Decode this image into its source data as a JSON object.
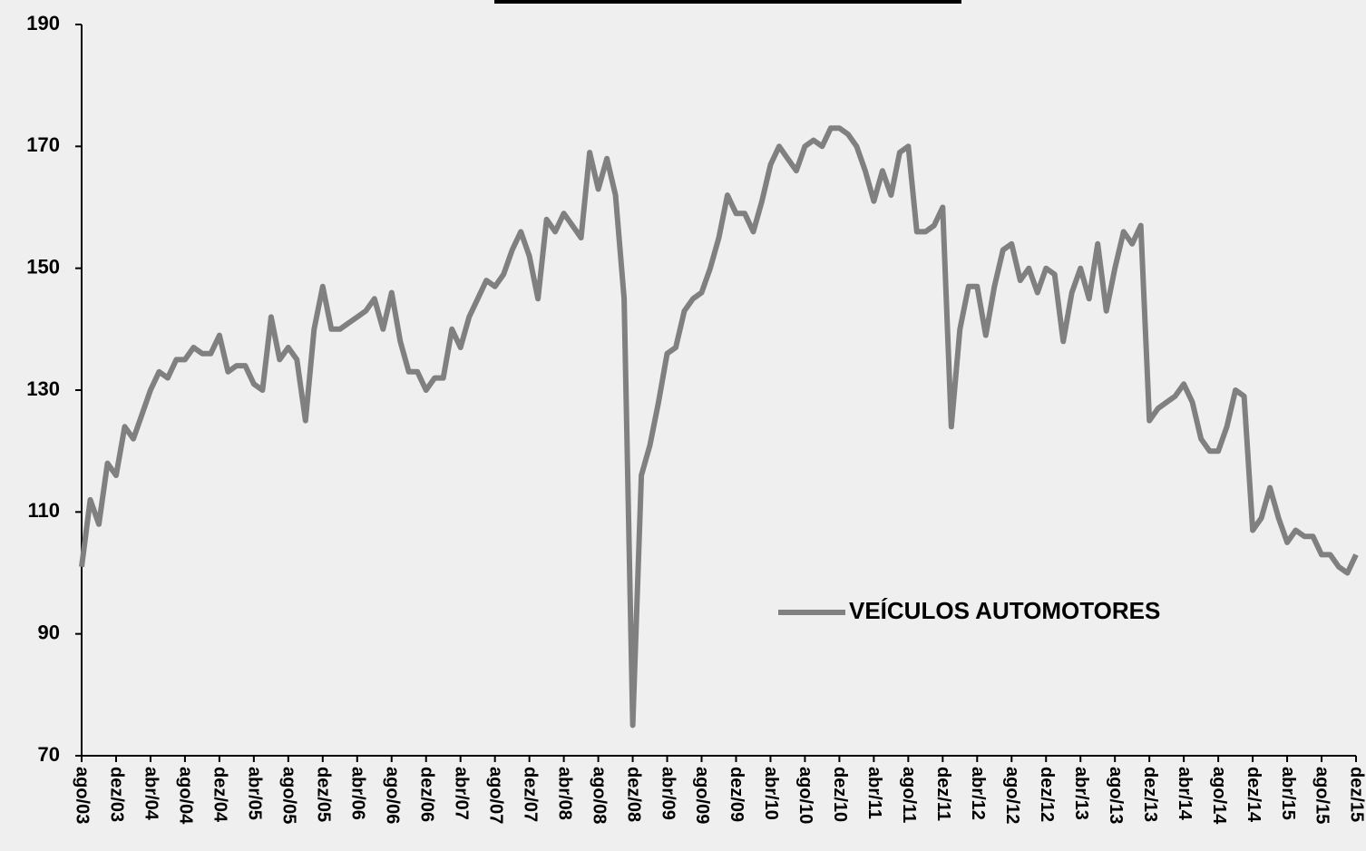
{
  "chart_data": {
    "type": "line",
    "categories": [
      "ago/03",
      null,
      null,
      null,
      "dez/03",
      null,
      null,
      null,
      "abr/04",
      null,
      null,
      null,
      "ago/04",
      null,
      null,
      null,
      "dez/04",
      null,
      null,
      null,
      "abr/05",
      null,
      null,
      null,
      "ago/05",
      null,
      null,
      null,
      "dez/05",
      null,
      null,
      null,
      "abr/06",
      null,
      null,
      null,
      "ago/06",
      null,
      null,
      null,
      "dez/06",
      null,
      null,
      null,
      "abr/07",
      null,
      null,
      null,
      "ago/07",
      null,
      null,
      null,
      "dez/07",
      null,
      null,
      null,
      "abr/08",
      null,
      null,
      null,
      "ago/08",
      null,
      null,
      null,
      "dez/08",
      null,
      null,
      null,
      "abr/09",
      null,
      null,
      null,
      "ago/09",
      null,
      null,
      null,
      "dez/09",
      null,
      null,
      null,
      "abr/10",
      null,
      null,
      null,
      "ago/10",
      null,
      null,
      null,
      "dez/10",
      null,
      null,
      null,
      "abr/11",
      null,
      null,
      null,
      "ago/11",
      null,
      null,
      null,
      "dez/11",
      null,
      null,
      null,
      "abr/12",
      null,
      null,
      null,
      "ago/12",
      null,
      null,
      null,
      "dez/12",
      null,
      null,
      null,
      "abr/13",
      null,
      null,
      null,
      "ago/13",
      null,
      null,
      null,
      "dez/13",
      null,
      null,
      null,
      "abr/14",
      null,
      null,
      null,
      "ago/14",
      null,
      null,
      null,
      "dez/14",
      null,
      null,
      null,
      "abr/15",
      null,
      null,
      null,
      "ago/15",
      null,
      null,
      null,
      "dez/15"
    ],
    "series": [
      {
        "name": "VEÍCULOS AUTOMOTORES",
        "color": "#808080",
        "values": [
          101,
          112,
          108,
          118,
          116,
          124,
          122,
          126,
          130,
          133,
          132,
          135,
          135,
          137,
          136,
          136,
          139,
          133,
          134,
          134,
          131,
          130,
          142,
          135,
          137,
          135,
          125,
          140,
          147,
          140,
          140,
          141,
          142,
          143,
          145,
          140,
          146,
          138,
          133,
          133,
          130,
          132,
          132,
          140,
          137,
          142,
          145,
          148,
          147,
          149,
          153,
          156,
          152,
          145,
          158,
          156,
          159,
          157,
          155,
          169,
          163,
          168,
          162,
          145,
          75,
          116,
          121,
          128,
          136,
          137,
          143,
          145,
          146,
          150,
          155,
          162,
          159,
          159,
          156,
          161,
          167,
          170,
          168,
          166,
          170,
          171,
          170,
          173,
          173,
          172,
          170,
          166,
          161,
          166,
          162,
          169,
          170,
          156,
          156,
          157,
          160,
          124,
          140,
          147,
          147,
          139,
          147,
          153,
          154,
          148,
          150,
          146,
          150,
          149,
          138,
          146,
          150,
          145,
          154,
          143,
          150,
          156,
          154,
          157,
          125,
          127,
          128,
          129,
          131,
          128,
          122,
          120,
          120,
          124,
          130,
          129,
          107,
          109,
          114,
          109,
          105,
          107,
          106,
          106,
          103,
          103,
          101,
          100,
          103
        ]
      }
    ],
    "ylim": [
      70,
      190
    ],
    "yticks": [
      70,
      90,
      110,
      130,
      150,
      170,
      190
    ],
    "legend": "inside"
  }
}
